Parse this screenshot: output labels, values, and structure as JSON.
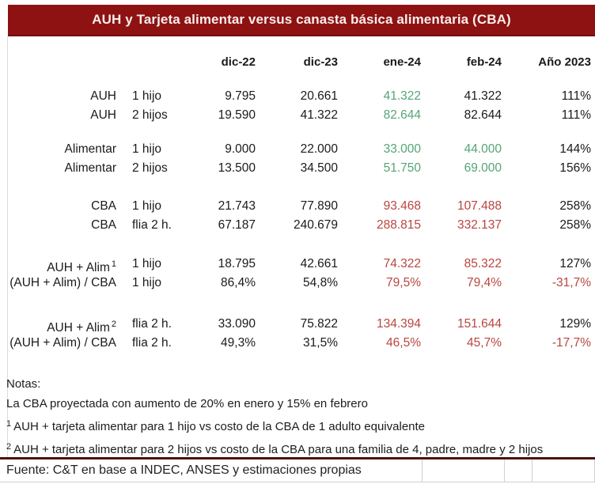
{
  "title_bar": {
    "title": "AUH y Tarjeta alimentar versus canasta básica alimentaria (CBA)"
  },
  "chart_data": {
    "type": "table",
    "title": "AUH y Tarjeta alimentar versus canasta básica alimentaria (CBA)",
    "columns": [
      "",
      "",
      "dic-22",
      "dic-23",
      "ene-24",
      "feb-24",
      "Año 2023"
    ],
    "sections": [
      {
        "rows": [
          {
            "cells": [
              "AUH",
              "1 hijo",
              "9.795",
              "20.661",
              "41.322",
              "41.322",
              "111%"
            ],
            "colors": [
              "k",
              "k",
              "k",
              "k",
              "g",
              "k",
              "k"
            ],
            "label_sup": ""
          },
          {
            "cells": [
              "AUH",
              "2 hijos",
              "19.590",
              "41.322",
              "82.644",
              "82.644",
              "111%"
            ],
            "colors": [
              "k",
              "k",
              "k",
              "k",
              "g",
              "k",
              "k"
            ],
            "label_sup": ""
          }
        ]
      },
      {
        "rows": [
          {
            "cells": [
              "Alimentar",
              "1 hijo",
              "9.000",
              "22.000",
              "33.000",
              "44.000",
              "144%"
            ],
            "colors": [
              "k",
              "k",
              "k",
              "k",
              "g",
              "g",
              "k"
            ],
            "label_sup": ""
          },
          {
            "cells": [
              "Alimentar",
              "2 hijos",
              "13.500",
              "34.500",
              "51.750",
              "69.000",
              "156%"
            ],
            "colors": [
              "k",
              "k",
              "k",
              "k",
              "g",
              "g",
              "k"
            ],
            "label_sup": ""
          }
        ]
      },
      {
        "rows": [
          {
            "cells": [
              "CBA",
              "1 hijo",
              "21.743",
              "77.890",
              "93.468",
              "107.488",
              "258%"
            ],
            "colors": [
              "k",
              "k",
              "k",
              "k",
              "r",
              "r",
              "k"
            ],
            "label_sup": ""
          },
          {
            "cells": [
              "CBA",
              "flia 2 h.",
              "67.187",
              "240.679",
              "288.815",
              "332.137",
              "258%"
            ],
            "colors": [
              "k",
              "k",
              "k",
              "k",
              "r",
              "r",
              "k"
            ],
            "label_sup": ""
          }
        ]
      },
      {
        "rows": [
          {
            "cells": [
              "AUH + Alim",
              "1 hijo",
              "18.795",
              "42.661",
              "74.322",
              "85.322",
              "127%"
            ],
            "colors": [
              "k",
              "k",
              "k",
              "k",
              "r",
              "r",
              "k"
            ],
            "label_sup": "1"
          },
          {
            "cells": [
              "(AUH + Alim) / CBA",
              "1 hijo",
              "86,4%",
              "54,8%",
              "79,5%",
              "79,4%",
              "-31,7%"
            ],
            "colors": [
              "k",
              "k",
              "k",
              "k",
              "r",
              "r",
              "r"
            ],
            "label_sup": ""
          }
        ]
      },
      {
        "rows": [
          {
            "cells": [
              "AUH + Alim",
              "flia 2 h.",
              "33.090",
              "75.822",
              "134.394",
              "151.644",
              "129%"
            ],
            "colors": [
              "k",
              "k",
              "k",
              "k",
              "r",
              "r",
              "k"
            ],
            "label_sup": "2"
          },
          {
            "cells": [
              "(AUH + Alim) / CBA",
              "flia 2 h.",
              "49,3%",
              "31,5%",
              "46,5%",
              "45,7%",
              "-17,7%"
            ],
            "colors": [
              "k",
              "k",
              "k",
              "k",
              "r",
              "r",
              "r"
            ],
            "label_sup": ""
          }
        ]
      }
    ]
  },
  "notes": {
    "heading": "Notas:",
    "general": "La CBA proyectada con aumento de 20% en enero y 15% en febrero",
    "note1_sup": "1",
    "note1_text": "AUH + tarjeta alimentar para 1 hijo vs costo de la CBA de 1 adulto equivalente",
    "note2_sup": "2",
    "note2_text": "AUH + tarjeta alimentar para 2 hijos vs costo de la CBA para una familia de 4, padre, madre y 2 hijos"
  },
  "footer": {
    "source": "Fuente: C&T en base a INDEC, ANSES y estimaciones propias"
  },
  "colors": {
    "header_bg": "#8e1212",
    "header_text": "#f7efec",
    "positive_green": "#55a477",
    "negative_red": "#b9453f",
    "divider_rule": "#4d130d",
    "gridline": "#dcdcdc"
  }
}
